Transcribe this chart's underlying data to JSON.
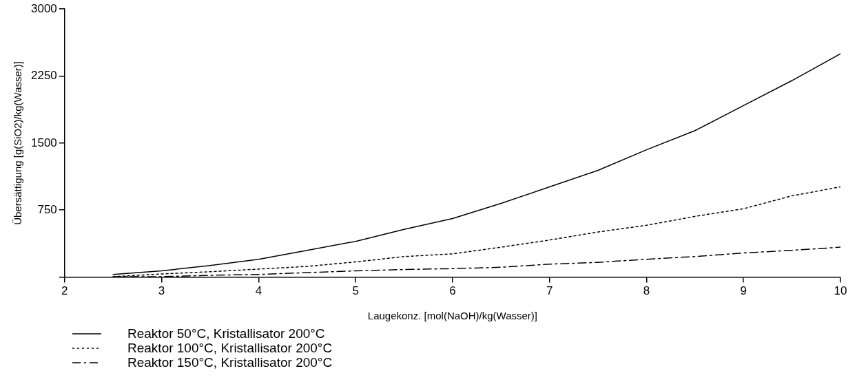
{
  "chart_data": {
    "type": "line",
    "xlabel": "Laugekonz. [mol(NaOH)/kg(Wasser)]",
    "ylabel": "Übersättigung [g(SiO2)/kg(Wasser)]",
    "xlim": [
      2,
      10
    ],
    "xticks": [
      2,
      3,
      4,
      5,
      6,
      7,
      8,
      9,
      10
    ],
    "ylim": [
      0,
      3000
    ],
    "yticks": [
      {
        "value": 0,
        "label": null
      },
      750,
      1500,
      2250,
      3000
    ],
    "grid": false,
    "legend": "bottom left",
    "marker": "none",
    "series": [
      {
        "name": "Reaktor 50°C, Kristallisator 200°C",
        "color": "#000000",
        "line_style": "solid",
        "x": [
          2.5,
          3,
          3.5,
          4,
          4.5,
          5,
          5.5,
          6,
          6.5,
          7,
          7.5,
          8,
          8.5,
          9,
          9.5,
          10
        ],
        "values": [
          30,
          70,
          130,
          200,
          300,
          400,
          535,
          655,
          825,
          1010,
          1195,
          1425,
          1640,
          1920,
          2200,
          2500
        ]
      },
      {
        "name": "Reaktor 100°C, Kristallisator 200°C",
        "color": "#000000",
        "line_style": "dotted",
        "x": [
          2.5,
          3,
          3.5,
          4,
          4.5,
          5,
          5.5,
          6,
          6.5,
          7,
          7.5,
          8,
          8.5,
          9,
          9.5,
          10
        ],
        "values": [
          5,
          35,
          60,
          90,
          120,
          170,
          230,
          260,
          335,
          415,
          505,
          580,
          680,
          765,
          910,
          1010
        ]
      },
      {
        "name": "Reaktor 150°C, Kristallisator 200°C",
        "color": "#000000",
        "line_style": "dashed",
        "x": [
          2.5,
          3,
          3.5,
          4,
          4.5,
          5,
          5.5,
          6,
          6.5,
          7,
          7.5,
          8,
          8.5,
          9,
          9.5,
          10
        ],
        "values": [
          5,
          5,
          20,
          30,
          50,
          70,
          85,
          95,
          110,
          145,
          165,
          200,
          230,
          270,
          300,
          335
        ]
      }
    ]
  }
}
